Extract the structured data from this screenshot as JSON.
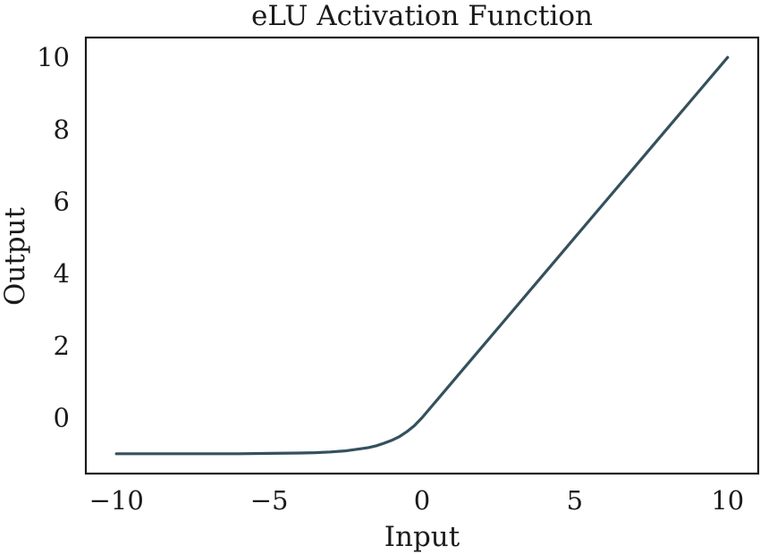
{
  "chart_data": {
    "type": "line",
    "title": "eLU Activation Function",
    "xlabel": "Input",
    "ylabel": "Output",
    "xlim": [
      -11,
      11
    ],
    "ylim": [
      -1.55,
      10.55
    ],
    "xticks": [
      -10,
      -5,
      0,
      5,
      10
    ],
    "xtick_labels": [
      "−10",
      "−5",
      "0",
      "5",
      "10"
    ],
    "yticks": [
      0,
      2,
      4,
      6,
      8,
      10
    ],
    "ytick_labels": [
      "0",
      "2",
      "4",
      "6",
      "8",
      "10"
    ],
    "grid": false,
    "series": [
      {
        "color": "#35505d",
        "x": [
          -10,
          -9,
          -8,
          -7,
          -6,
          -5,
          -4,
          -3.5,
          -3,
          -2.5,
          -2,
          -1.75,
          -1.5,
          -1.25,
          -1,
          -0.75,
          -0.5,
          -0.25,
          0,
          1,
          2,
          3,
          4,
          5,
          6,
          7,
          8,
          9,
          10
        ],
        "y": [
          -1.0,
          -1.0,
          -1.0,
          -1.0,
          -1.0,
          -0.99,
          -0.98,
          -0.97,
          -0.95,
          -0.92,
          -0.86,
          -0.83,
          -0.78,
          -0.71,
          -0.63,
          -0.53,
          -0.39,
          -0.22,
          0,
          1,
          2,
          3,
          4,
          5,
          6,
          7,
          8,
          9,
          10
        ]
      }
    ]
  }
}
